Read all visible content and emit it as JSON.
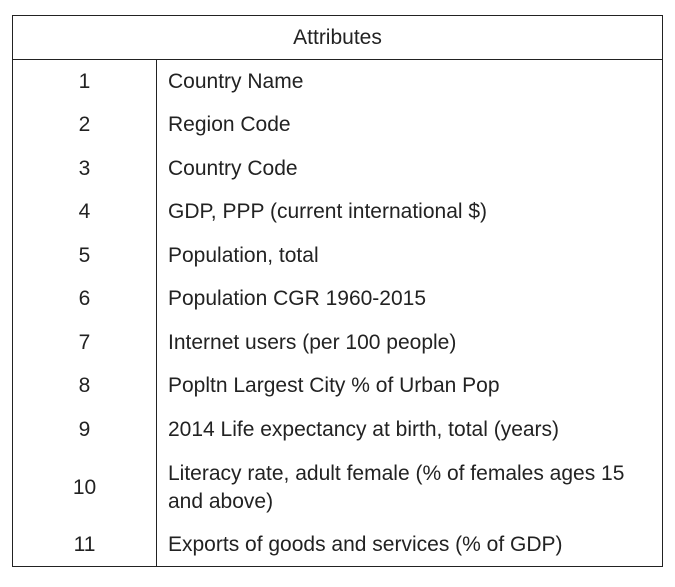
{
  "table": {
    "header": "Attributes",
    "rows": [
      {
        "num": "1",
        "label": "Country Name"
      },
      {
        "num": "2",
        "label": "Region Code"
      },
      {
        "num": "3",
        "label": "Country Code"
      },
      {
        "num": "4",
        "label": "GDP, PPP (current international $)"
      },
      {
        "num": "5",
        "label": "Population, total"
      },
      {
        "num": "6",
        "label": "Population CGR 1960-2015"
      },
      {
        "num": "7",
        "label": "Internet users (per 100 people)"
      },
      {
        "num": "8",
        "label": "Popltn Largest City % of Urban Pop"
      },
      {
        "num": "9",
        "label": "2014 Life expectancy at birth, total (years)"
      },
      {
        "num": "10",
        "label": "Literacy rate, adult female (% of females ages 15 and above)"
      },
      {
        "num": "11",
        "label": "Exports of goods and services (% of GDP)"
      }
    ]
  }
}
